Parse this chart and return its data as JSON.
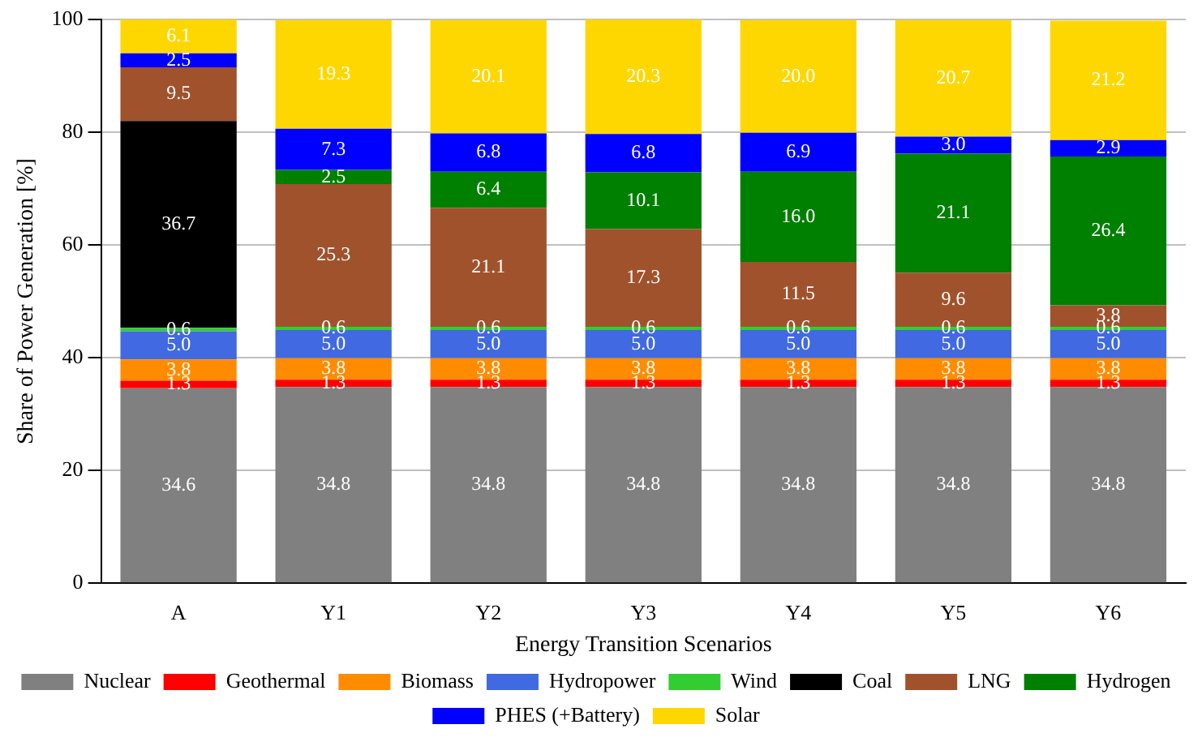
{
  "chart_data": {
    "type": "bar",
    "stacked": true,
    "xlabel": "Energy Transition Scenarios",
    "ylabel": "Share of Power Generation [%]",
    "categories": [
      "A",
      "Y1",
      "Y2",
      "Y3",
      "Y4",
      "Y5",
      "Y6"
    ],
    "series": [
      {
        "name": "Nuclear",
        "color": "#808080",
        "values": [
          34.6,
          34.8,
          34.8,
          34.8,
          34.8,
          34.8,
          34.8
        ],
        "value_labels": [
          "34.6",
          "34.8",
          "34.8",
          "34.8",
          "34.8",
          "34.8",
          "34.8"
        ]
      },
      {
        "name": "Geothermal",
        "color": "#ff0000",
        "values": [
          1.3,
          1.3,
          1.3,
          1.3,
          1.3,
          1.3,
          1.3
        ],
        "value_labels": [
          "1.3",
          "1.3",
          "1.3",
          "1.3",
          "1.3",
          "1.3",
          "1.3"
        ]
      },
      {
        "name": "Biomass",
        "color": "#ff8c00",
        "values": [
          3.8,
          3.8,
          3.8,
          3.8,
          3.8,
          3.8,
          3.8
        ],
        "value_labels": [
          "3.8",
          "3.8",
          "3.8",
          "3.8",
          "3.8",
          "3.8",
          "3.8"
        ]
      },
      {
        "name": "Hydropower",
        "color": "#4169e1",
        "values": [
          5.0,
          5.0,
          5.0,
          5.0,
          5.0,
          5.0,
          5.0
        ],
        "value_labels": [
          "5.0",
          "5.0",
          "5.0",
          "5.0",
          "5.0",
          "5.0",
          "5.0"
        ]
      },
      {
        "name": "Wind",
        "color": "#32cd32",
        "values": [
          0.6,
          0.6,
          0.6,
          0.6,
          0.6,
          0.6,
          0.6
        ],
        "value_labels": [
          "0.6",
          "0.6",
          "0.6",
          "0.6",
          "0.6",
          "0.6",
          "0.6"
        ]
      },
      {
        "name": "Coal",
        "color": "#000000",
        "values": [
          36.7,
          null,
          null,
          null,
          null,
          null,
          null
        ],
        "value_labels": [
          "36.7",
          null,
          null,
          null,
          null,
          null,
          null
        ]
      },
      {
        "name": "LNG",
        "color": "#a0522d",
        "values": [
          9.5,
          25.3,
          21.1,
          17.3,
          11.5,
          9.6,
          3.8
        ],
        "value_labels": [
          "9.5",
          "25.3",
          "21.1",
          "17.3",
          "11.5",
          "9.6",
          "3.8"
        ]
      },
      {
        "name": "Hydrogen",
        "color": "#008000",
        "values": [
          null,
          2.5,
          6.4,
          10.1,
          16.0,
          21.1,
          26.4
        ],
        "value_labels": [
          null,
          "2.5",
          "6.4",
          "10.1",
          "16.0",
          "21.1",
          "26.4"
        ]
      },
      {
        "name": "PHES (+Battery)",
        "color": "#0000ff",
        "values": [
          2.5,
          7.3,
          6.8,
          6.8,
          6.9,
          3.0,
          2.9
        ],
        "value_labels": [
          "2.5",
          "7.3",
          "6.8",
          "6.8",
          "6.9",
          "3.0",
          "2.9"
        ]
      },
      {
        "name": "Solar",
        "color": "#ffd700",
        "values": [
          6.1,
          19.3,
          20.1,
          20.3,
          20.0,
          20.7,
          21.2
        ],
        "value_labels": [
          "6.1",
          "19.3",
          "20.1",
          "20.3",
          "20.0",
          "20.7",
          "21.2"
        ]
      }
    ],
    "ylim": [
      0,
      100
    ],
    "yticks": [
      0,
      20,
      40,
      60,
      80,
      100
    ],
    "grid": "y",
    "legend": "bottom"
  }
}
